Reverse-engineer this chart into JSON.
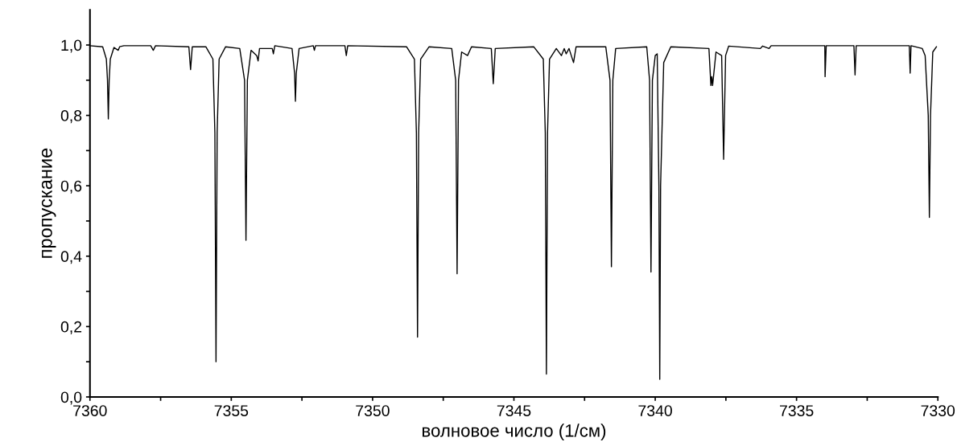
{
  "chart_data": {
    "type": "line",
    "xlabel": "волновое число (1/см)",
    "ylabel": "пропускание",
    "xlim": [
      7360,
      7330
    ],
    "ylim": [
      0,
      1.1
    ],
    "xticks": [
      7360,
      {
        "value": 7357.5,
        "label": null
      },
      7355,
      {
        "value": 7352.5,
        "label": null
      },
      7350,
      {
        "value": 7347.5,
        "label": null
      },
      7345,
      {
        "value": 7342.5,
        "label": null
      },
      7340,
      {
        "value": 7337.5,
        "label": null
      },
      7335,
      {
        "value": 7332.5,
        "label": null
      },
      7330
    ],
    "yticks": [
      {
        "value": 0,
        "label": "0,0"
      },
      {
        "value": 0.1,
        "label": null
      },
      {
        "value": 0.2,
        "label": "0,2"
      },
      {
        "value": 0.3,
        "label": null
      },
      {
        "value": 0.4,
        "label": "0,4"
      },
      {
        "value": 0.5,
        "label": null
      },
      {
        "value": 0.6,
        "label": "0,6"
      },
      {
        "value": 0.7,
        "label": null
      },
      {
        "value": 0.8,
        "label": "0,8"
      },
      {
        "value": 0.9,
        "label": null
      },
      {
        "value": 1.0,
        "label": "1,0"
      }
    ],
    "marker": "none",
    "line_style": "solid",
    "series": [
      {
        "color": "#000000",
        "x": [
          7360.0,
          7359.55,
          7359.42,
          7359.38,
          7359.35,
          7359.32,
          7359.28,
          7359.15,
          7359.0,
          7358.95,
          7358.8,
          7357.85,
          7357.76,
          7357.68,
          7356.5,
          7356.44,
          7356.38,
          7355.9,
          7355.65,
          7355.58,
          7355.54,
          7355.5,
          7355.43,
          7355.2,
          7354.7,
          7354.53,
          7354.48,
          7354.43,
          7354.3,
          7354.1,
          7354.05,
          7354.0,
          7353.55,
          7353.51,
          7353.46,
          7352.85,
          7352.76,
          7352.73,
          7352.7,
          7352.6,
          7352.1,
          7352.06,
          7352.02,
          7350.98,
          7350.93,
          7350.88,
          7348.8,
          7348.52,
          7348.45,
          7348.41,
          7348.37,
          7348.3,
          7348.0,
          7347.2,
          7347.06,
          7347.01,
          7346.96,
          7346.85,
          7346.64,
          7346.5,
          7345.8,
          7345.73,
          7345.66,
          7344.3,
          7343.96,
          7343.89,
          7343.85,
          7343.81,
          7343.74,
          7343.5,
          7343.32,
          7343.22,
          7343.15,
          7343.05,
          7342.89,
          7342.8,
          7341.75,
          7341.6,
          7341.55,
          7341.5,
          7341.4,
          7340.3,
          7340.2,
          7340.15,
          7340.1,
          7340.0,
          7339.93,
          7339.87,
          7339.84,
          7339.81,
          7339.7,
          7339.45,
          7338.1,
          7338.03,
          7338.0,
          7337.97,
          7337.85,
          7337.65,
          7337.58,
          7337.51,
          7337.4,
          7336.28,
          7336.2,
          7335.97,
          7335.9,
          7334.0,
          7333.99,
          7333.95,
          7332.97,
          7332.93,
          7332.89,
          7331.01,
          7330.98,
          7330.95,
          7330.55,
          7330.45,
          7330.34,
          7330.3,
          7330.26,
          7330.18,
          7330.05
        ],
        "values": [
          0.998,
          0.995,
          0.96,
          0.9,
          0.79,
          0.9,
          0.96,
          0.993,
          0.985,
          0.995,
          0.998,
          0.998,
          0.985,
          0.998,
          0.995,
          0.93,
          0.995,
          0.995,
          0.96,
          0.75,
          0.1,
          0.75,
          0.96,
          0.995,
          0.99,
          0.9,
          0.445,
          0.9,
          0.985,
          0.97,
          0.955,
          0.99,
          0.99,
          0.975,
          0.998,
          0.99,
          0.92,
          0.84,
          0.92,
          0.99,
          0.998,
          0.985,
          0.998,
          0.998,
          0.97,
          0.998,
          0.995,
          0.96,
          0.75,
          0.17,
          0.75,
          0.96,
          0.995,
          0.99,
          0.9,
          0.35,
          0.9,
          0.98,
          0.97,
          0.995,
          0.99,
          0.89,
          0.99,
          0.995,
          0.96,
          0.75,
          0.065,
          0.75,
          0.96,
          0.99,
          0.97,
          0.99,
          0.975,
          0.99,
          0.95,
          0.995,
          0.995,
          0.9,
          0.37,
          0.9,
          0.99,
          0.995,
          0.9,
          0.355,
          0.9,
          0.97,
          0.975,
          0.6,
          0.05,
          0.6,
          0.95,
          0.995,
          0.99,
          0.885,
          0.91,
          0.885,
          0.98,
          0.97,
          0.675,
          0.97,
          0.997,
          0.99,
          0.997,
          0.99,
          0.998,
          0.998,
          0.91,
          0.998,
          0.998,
          0.915,
          0.998,
          0.998,
          0.92,
          0.998,
          0.99,
          0.97,
          0.8,
          0.51,
          0.8,
          0.98,
          0.995
        ]
      }
    ]
  }
}
